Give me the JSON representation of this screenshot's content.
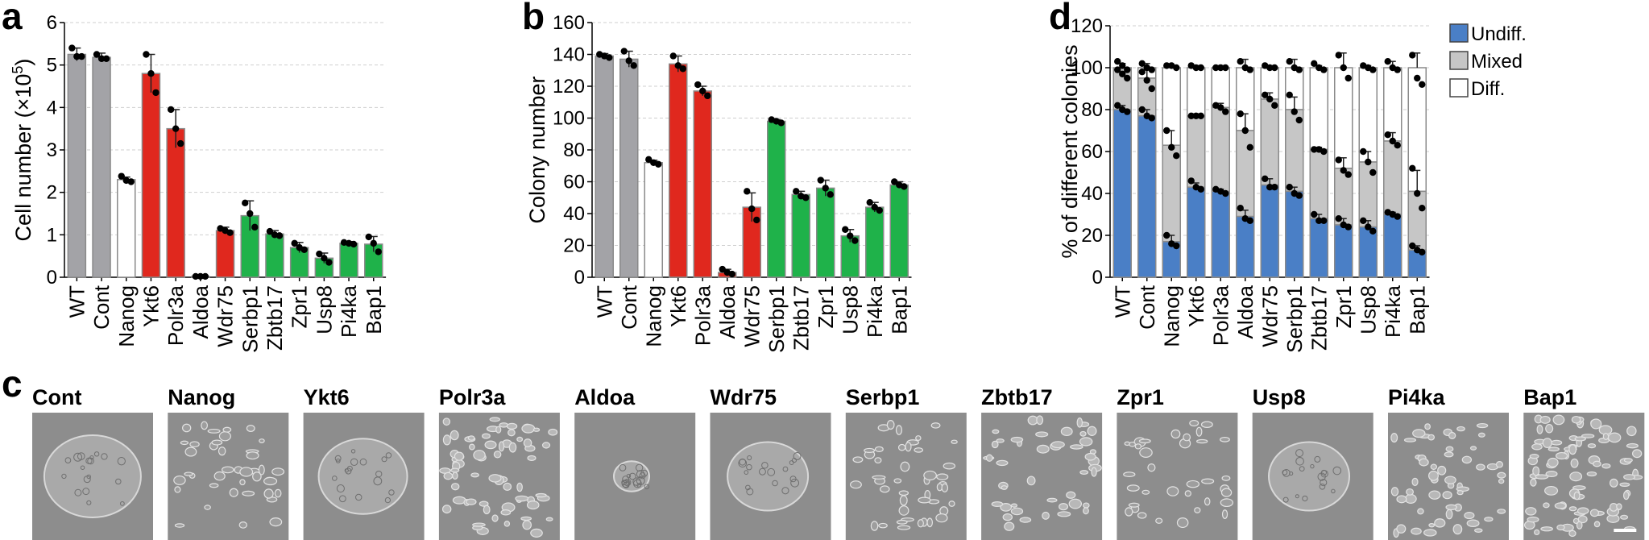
{
  "panels": {
    "a": "a",
    "b": "b",
    "c": "c",
    "d": "d"
  },
  "colors": {
    "control": "#a3a3a7",
    "negative": "#ffffff",
    "red": "#e0281e",
    "green": "#1fb24a",
    "undiff": "#4a7fc6",
    "mixed": "#c6c6c6",
    "diff": "#ffffff"
  },
  "chart_data": [
    {
      "id": "a",
      "type": "bar",
      "ylabel_main": "Cell number (×10",
      "ylabel_exp": "5",
      "ylabel_close": ")",
      "ylim": [
        0,
        6
      ],
      "yticks": [
        "0",
        "1",
        "2",
        "3",
        "4",
        "5",
        "6"
      ],
      "grid": true,
      "categories": [
        "WT",
        "Cont",
        "Nanog",
        "Ykt6",
        "Polr3a",
        "Aldoa",
        "Wdr75",
        "Serbp1",
        "Zbtb17",
        "Zpr1",
        "Usp8",
        "Pi4ka",
        "Bap1"
      ],
      "values": [
        5.25,
        5.18,
        2.3,
        4.8,
        3.5,
        0.02,
        1.1,
        1.45,
        1.02,
        0.7,
        0.45,
        0.8,
        0.78
      ],
      "errors": [
        0.15,
        0.1,
        0.06,
        0.45,
        0.45,
        0.02,
        0.08,
        0.35,
        0.08,
        0.12,
        0.12,
        0.04,
        0.18
      ],
      "points": [
        [
          5.4,
          5.2,
          5.2
        ],
        [
          5.25,
          5.15,
          5.15
        ],
        [
          2.38,
          2.28,
          2.25
        ],
        [
          5.25,
          4.8,
          4.35
        ],
        [
          3.95,
          3.5,
          3.15
        ],
        [
          0.02,
          0.02,
          0.02
        ],
        [
          1.15,
          1.1,
          1.05
        ],
        [
          1.75,
          1.5,
          1.18
        ],
        [
          1.08,
          1.0,
          0.98
        ],
        [
          0.8,
          0.7,
          0.65
        ],
        [
          0.55,
          0.45,
          0.35
        ],
        [
          0.82,
          0.8,
          0.78
        ],
        [
          0.95,
          0.8,
          0.6
        ]
      ],
      "bar_colors": [
        "control",
        "control",
        "negative",
        "red",
        "red",
        "red",
        "red",
        "green",
        "green",
        "green",
        "green",
        "green",
        "green"
      ],
      "error_colors": [
        "control",
        "control",
        "control",
        "red",
        "red",
        "red",
        "red",
        "green",
        "green",
        "green",
        "green",
        "green",
        "green"
      ]
    },
    {
      "id": "b",
      "type": "bar",
      "ylabel": "Colony number",
      "ylim": [
        0,
        160
      ],
      "yticks": [
        "0",
        "20",
        "40",
        "60",
        "80",
        "100",
        "120",
        "140",
        "160"
      ],
      "grid": true,
      "categories": [
        "WT",
        "Cont",
        "Nanog",
        "Ykt6",
        "Polr3a",
        "Aldoa",
        "Wdr75",
        "Serbp1",
        "Zbtb17",
        "Zpr1",
        "Usp8",
        "Pi4ka",
        "Bap1"
      ],
      "values": [
        139,
        137,
        72,
        134,
        117,
        3,
        44,
        98,
        52,
        56,
        26,
        44,
        58
      ],
      "errors": [
        1.5,
        5,
        1.5,
        5,
        3,
        2,
        9,
        1,
        2,
        5,
        4,
        3,
        2
      ],
      "points": [
        [
          140,
          139,
          138
        ],
        [
          142,
          136,
          133
        ],
        [
          74,
          72,
          71
        ],
        [
          139,
          133,
          131
        ],
        [
          121,
          117,
          114
        ],
        [
          5,
          3,
          2
        ],
        [
          54,
          43,
          36
        ],
        [
          99,
          98,
          97
        ],
        [
          54,
          51,
          50
        ],
        [
          61,
          56,
          52
        ],
        [
          30,
          26,
          23
        ],
        [
          47,
          44,
          42
        ],
        [
          60,
          58,
          57
        ]
      ],
      "bar_colors": [
        "control",
        "control",
        "negative",
        "red",
        "red",
        "red",
        "red",
        "green",
        "green",
        "green",
        "green",
        "green",
        "green"
      ],
      "error_colors": [
        "control",
        "control",
        "control",
        "red",
        "red",
        "red",
        "red",
        "green",
        "green",
        "green",
        "green",
        "green",
        "green"
      ]
    },
    {
      "id": "d",
      "type": "bar",
      "stacked": true,
      "ylabel": "% of different colonies",
      "ylim": [
        0,
        120
      ],
      "yticks": [
        "0",
        "20",
        "40",
        "60",
        "80",
        "100",
        "120"
      ],
      "grid": true,
      "legend_position": "top-right",
      "categories": [
        "WT",
        "Cont",
        "Nanog",
        "Ykt6",
        "Polr3a",
        "Aldoa",
        "Wdr75",
        "Serbp1",
        "Zbtb17",
        "Zpr1",
        "Usp8",
        "Pi4ka",
        "Bap1"
      ],
      "series": [
        {
          "name": "Undiff.",
          "color": "undiff",
          "values": [
            80,
            77,
            17,
            43,
            41,
            29,
            44,
            41,
            28,
            25,
            24,
            30,
            13
          ],
          "errors": [
            2,
            3,
            3,
            2,
            1,
            3,
            3,
            2,
            2,
            3,
            3,
            1,
            2
          ],
          "points": [
            [
              82,
              80,
              79
            ],
            [
              80,
              77,
              76
            ],
            [
              20,
              16,
              15
            ],
            [
              46,
              43,
              42
            ],
            [
              42,
              41,
              40
            ],
            [
              33,
              28,
              27
            ],
            [
              47,
              43,
              43
            ],
            [
              43,
              40,
              39
            ],
            [
              30,
              27,
              27
            ],
            [
              28,
              25,
              24
            ],
            [
              27,
              24,
              22
            ],
            [
              31,
              30,
              29
            ],
            [
              15,
              13,
              12
            ]
          ]
        },
        {
          "name": "Mixed",
          "color": "mixed",
          "values": [
            20,
            18,
            46,
            34,
            40,
            41,
            41,
            39,
            33,
            27,
            31,
            35,
            28
          ],
          "cumulative": [
            100,
            95,
            63,
            77,
            81,
            70,
            85,
            80,
            61,
            52,
            55,
            65,
            41
          ],
          "errors": [
            2,
            4,
            7,
            1,
            2,
            8,
            3,
            6,
            1,
            5,
            5,
            4,
            10
          ],
          "points": [
            [
              99,
              97,
              95
            ],
            [
              98,
              94,
              90
            ],
            [
              70,
              62,
              58
            ],
            [
              77,
              77,
              77
            ],
            [
              82,
              81,
              79
            ],
            [
              78,
              70,
              62
            ],
            [
              87,
              85,
              82
            ],
            [
              87,
              79,
              75
            ],
            [
              61,
              61,
              60
            ],
            [
              56,
              51,
              49
            ],
            [
              60,
              55,
              50
            ],
            [
              68,
              65,
              63
            ],
            [
              52,
              40,
              33
            ]
          ]
        },
        {
          "name": "Diff.",
          "color": "diff",
          "values": [
            0,
            5,
            37,
            23,
            19,
            30,
            15,
            20,
            39,
            48,
            45,
            35,
            59
          ],
          "errors": [
            2,
            2,
            1,
            1,
            1,
            4,
            1,
            4,
            1,
            7,
            1,
            3,
            7
          ],
          "points": [
            [
              103,
              101,
              99
            ],
            [
              102,
              100,
              99
            ],
            [
              101,
              101,
              100
            ],
            [
              101,
              100,
              100
            ],
            [
              100,
              100,
              100
            ],
            [
              103,
              100,
              99
            ],
            [
              101,
              100,
              100
            ],
            [
              103,
              100,
              99
            ],
            [
              102,
              100,
              99
            ],
            [
              106,
              100,
              95
            ],
            [
              101,
              100,
              99
            ],
            [
              103,
              100,
              99
            ],
            [
              106,
              95,
              92
            ]
          ]
        }
      ]
    }
  ],
  "images": {
    "labels": [
      "Cont",
      "Nanog",
      "Ykt6",
      "Polr3a",
      "Aldoa",
      "Wdr75",
      "Serbp1",
      "Zbtb17",
      "Zpr1",
      "Usp8",
      "Pi4ka",
      "Bap1"
    ]
  }
}
